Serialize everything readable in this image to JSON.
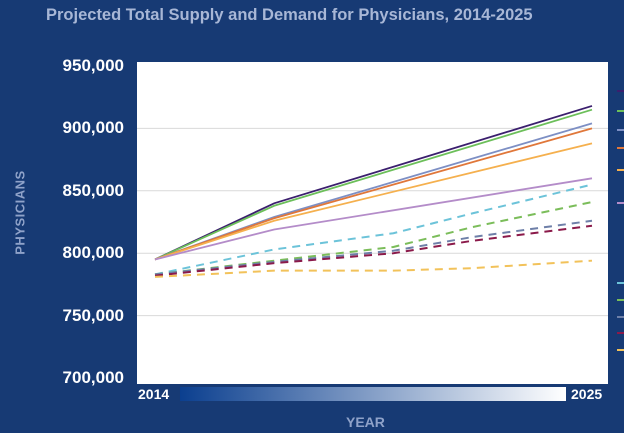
{
  "chart_data": {
    "type": "line",
    "title": "Projected Total Supply and Demand for Physicians, 2014-2025",
    "xlabel": "YEAR",
    "ylabel": "PHYSICIANS",
    "xlim": [
      2014,
      2025
    ],
    "ylim": [
      700000,
      950000
    ],
    "x_tick_labels": [
      "2014",
      "2025"
    ],
    "y_tick_labels": [
      "950,000",
      "900,000",
      "850,000",
      "800,000",
      "750,000",
      "700,000"
    ],
    "y_ticks": [
      950000,
      900000,
      850000,
      800000,
      750000,
      700000
    ],
    "grid": true,
    "legend": "right (cut off)",
    "series": [
      {
        "color": "#3b1f6e",
        "style": "solid",
        "x": [
          2014,
          2017,
          2025
        ],
        "values": [
          795000,
          840000,
          918000
        ]
      },
      {
        "color": "#6cbf5a",
        "style": "solid",
        "x": [
          2014,
          2017,
          2025
        ],
        "values": [
          795000,
          838000,
          915000
        ]
      },
      {
        "color": "#7d8fc4",
        "style": "solid",
        "x": [
          2014,
          2017,
          2025
        ],
        "values": [
          795000,
          829000,
          904000
        ]
      },
      {
        "color": "#e0773a",
        "style": "solid",
        "x": [
          2014,
          2017,
          2025
        ],
        "values": [
          795000,
          828000,
          900000
        ]
      },
      {
        "color": "#f5b04e",
        "style": "solid",
        "x": [
          2014,
          2017,
          2025
        ],
        "values": [
          795000,
          826000,
          888000
        ]
      },
      {
        "color": "#b48cc9",
        "style": "solid",
        "x": [
          2014,
          2017,
          2025
        ],
        "values": [
          795000,
          819000,
          860000
        ]
      },
      {
        "color": "#6cc3d9",
        "style": "dashed",
        "x": [
          2014,
          2017,
          2020,
          2022,
          2025
        ],
        "values": [
          783000,
          803000,
          816000,
          832000,
          855000
        ]
      },
      {
        "color": "#7bbd5a",
        "style": "dashed",
        "x": [
          2014,
          2017,
          2020,
          2022,
          2025
        ],
        "values": [
          783000,
          794000,
          805000,
          821000,
          841000
        ]
      },
      {
        "color": "#6e7fa8",
        "style": "dashed",
        "x": [
          2014,
          2017,
          2020,
          2022,
          2025
        ],
        "values": [
          783000,
          793000,
          802000,
          813000,
          826000
        ]
      },
      {
        "color": "#8b1a4a",
        "style": "dashed",
        "x": [
          2014,
          2017,
          2020,
          2022,
          2025
        ],
        "values": [
          782000,
          792000,
          800000,
          810000,
          822000
        ]
      },
      {
        "color": "#f2c25a",
        "style": "dashed",
        "x": [
          2014,
          2017,
          2020,
          2022,
          2025
        ],
        "values": [
          781000,
          786000,
          786000,
          788000,
          794000
        ]
      }
    ]
  }
}
